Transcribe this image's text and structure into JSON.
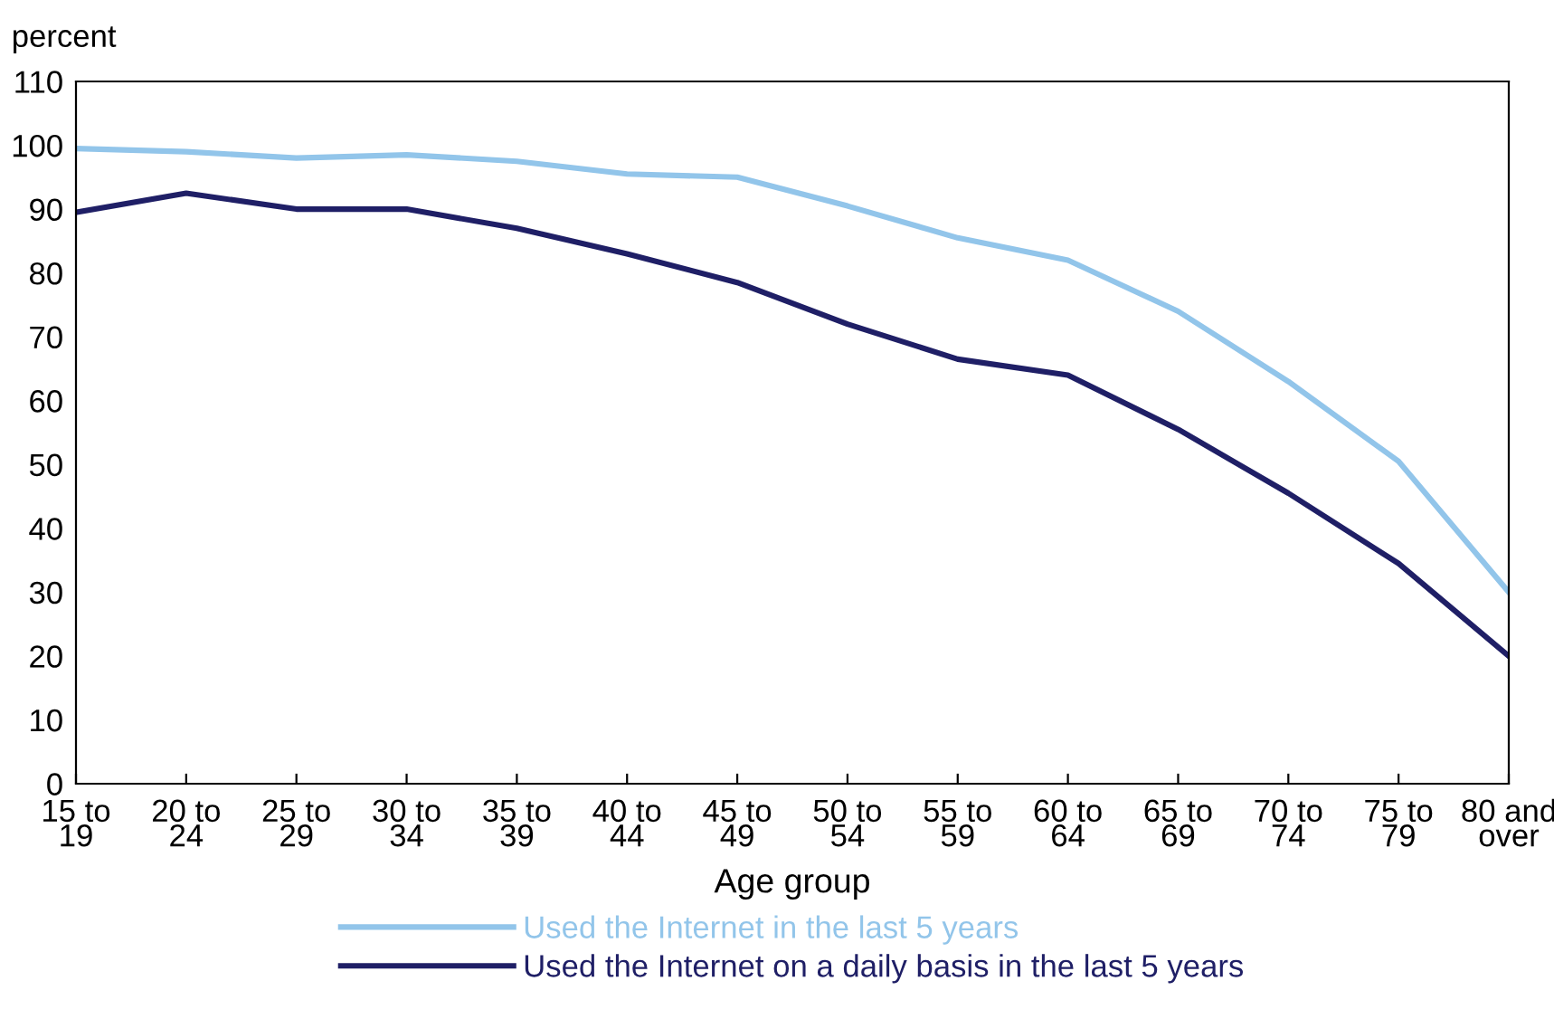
{
  "chart_data": {
    "type": "line",
    "ylabel": "percent",
    "xlabel": "Age group",
    "categories": [
      "15 to\n19",
      "20 to\n24",
      "25 to\n29",
      "30 to\n34",
      "35 to\n39",
      "40 to\n44",
      "45 to\n49",
      "50 to\n54",
      "55 to\n59",
      "60 to\n64",
      "65 to\n69",
      "70 to\n74",
      "75 to\n79",
      "80 and\nover"
    ],
    "series": [
      {
        "name": "Used the Internet in the last 5 years",
        "color": "#92c5ea",
        "values": [
          99.5,
          99,
          98,
          98.5,
          97.5,
          95.5,
          95,
          90.5,
          85.5,
          82,
          74,
          63,
          50.5,
          30
        ]
      },
      {
        "name": "Used the Internet on a daily basis in the last 5 years",
        "color": "#1f1f66",
        "values": [
          89.5,
          92.5,
          90,
          90,
          87,
          83,
          78.5,
          72,
          66.5,
          64,
          55.5,
          45.5,
          34.5,
          20
        ]
      }
    ],
    "ylim": [
      0,
      110
    ],
    "yticks": [
      0,
      10,
      20,
      30,
      40,
      50,
      60,
      70,
      80,
      90,
      100,
      110
    ],
    "grid": false,
    "legend": "bottom",
    "marker": "none",
    "line_style": "solid"
  }
}
